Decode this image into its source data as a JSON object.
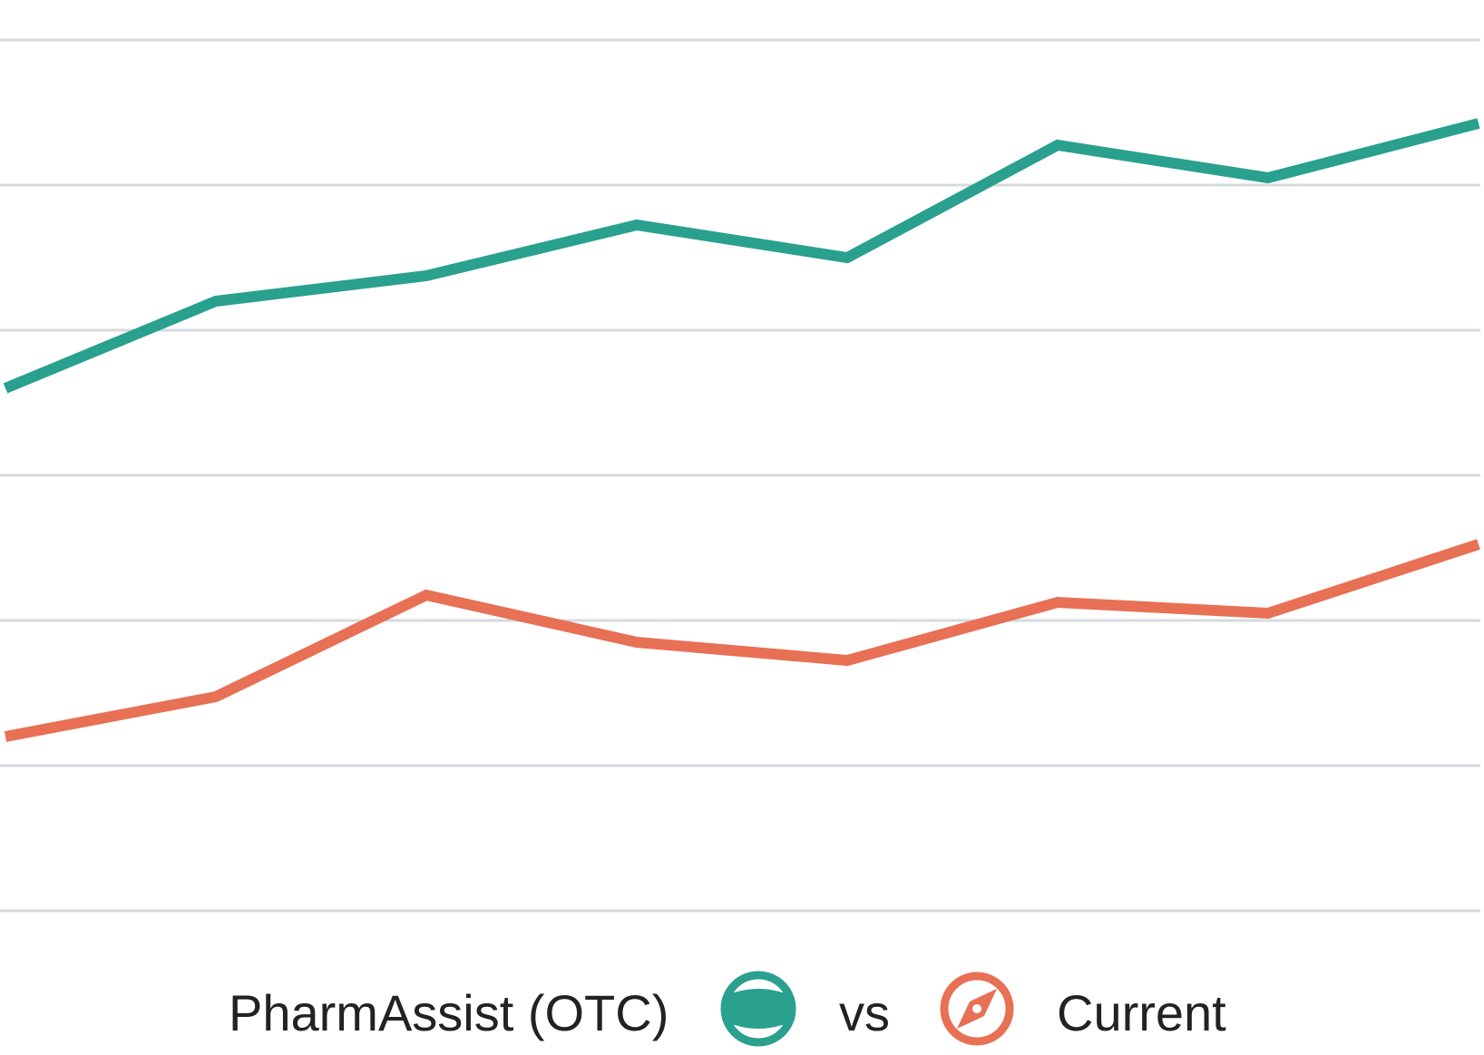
{
  "chart_data": {
    "type": "line",
    "x": [
      1,
      2,
      3,
      4,
      5,
      6,
      7,
      8
    ],
    "ylim": [
      0,
      100
    ],
    "grid": true,
    "legend_position": "bottom-center",
    "series": [
      {
        "name": "PharmAssist (OTC)",
        "color": "#2aa08f",
        "icon": "steering-wheel-icon",
        "values": [
          72,
          84,
          87.5,
          94.5,
          90,
          105.5,
          101,
          108.5
        ]
      },
      {
        "name": "Current",
        "color": "#e87055",
        "icon": "compass-icon",
        "values": [
          24,
          29.5,
          43.5,
          37,
          34.5,
          42.5,
          41,
          50.5
        ]
      }
    ],
    "legend_separator": "vs"
  }
}
